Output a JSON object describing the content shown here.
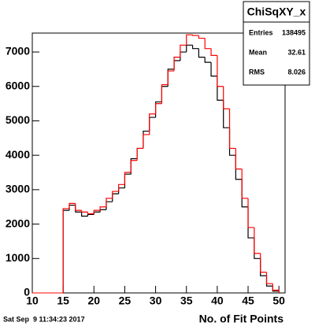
{
  "chart_data": {
    "type": "histogram",
    "xlabel": "No. of Fit Points",
    "footer": "Sat Sep  9 11:34:23 2017",
    "bins": [
      15,
      16,
      17,
      18,
      19,
      20,
      21,
      22,
      23,
      24,
      25,
      26,
      27,
      28,
      29,
      30,
      31,
      32,
      33,
      34,
      35,
      36,
      37,
      38,
      39,
      40,
      41,
      42,
      43,
      44,
      45,
      46,
      47,
      48,
      49,
      50
    ],
    "series": [
      {
        "color": "#000000",
        "values": [
          2400,
          2550,
          2350,
          2230,
          2280,
          2350,
          2420,
          2650,
          2880,
          3050,
          3450,
          3900,
          4200,
          4700,
          5100,
          5550,
          6000,
          6500,
          6750,
          7000,
          7200,
          7100,
          6850,
          6700,
          6300,
          5600,
          4800,
          4000,
          3300,
          2500,
          1600,
          1000,
          500,
          200,
          50
        ]
      },
      {
        "color": "#ff0000",
        "values": [
          2450,
          2600,
          2400,
          2350,
          2300,
          2400,
          2500,
          2750,
          2950,
          3150,
          3500,
          3850,
          4200,
          4600,
          5200,
          5500,
          6050,
          6450,
          6850,
          7200,
          7500,
          7480,
          7400,
          7100,
          6900,
          6000,
          5350,
          4200,
          3600,
          2750,
          1900,
          1150,
          600,
          270,
          80
        ]
      }
    ],
    "xlim": [
      10,
      51
    ],
    "ylim": [
      0,
      7550
    ],
    "xticks": [
      10,
      15,
      20,
      25,
      30,
      35,
      40,
      45,
      50
    ],
    "yticks": [
      0,
      1000,
      2000,
      3000,
      4000,
      5000,
      6000,
      7000
    ],
    "stats": {
      "title": "ChiSqXY_x",
      "labels": [
        "Entries",
        "Mean",
        "RMS"
      ],
      "values": [
        138495,
        32.61,
        8.026
      ]
    }
  }
}
